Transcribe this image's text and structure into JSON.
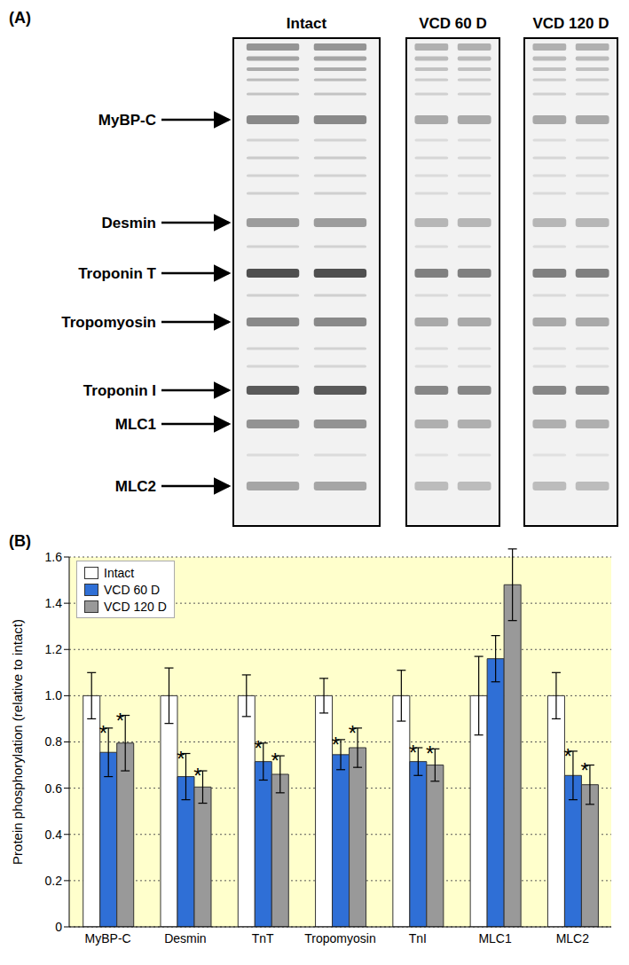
{
  "gel": {
    "label": "(A)",
    "lanes": [
      "Intact",
      "VCD 60 D",
      "VCD 120 D"
    ],
    "bands": [
      "MyBP-C",
      "Desmin",
      "Troponin T",
      "Tropomyosin",
      "Troponin I",
      "MLC1",
      "MLC2"
    ]
  },
  "chart_data": {
    "type": "bar",
    "title": "(B)",
    "y_label": "Protein phosphorylation (relative to intact)",
    "categories": [
      "MyBP-C",
      "Desmin",
      "TnT",
      "Tropomyosin",
      "TnI",
      "MLC1",
      "MLC2"
    ],
    "series": [
      {
        "name": "Intact",
        "color": "#ffffff",
        "values": [
          1.0,
          1.0,
          1.0,
          1.0,
          1.0,
          1.0,
          1.0
        ],
        "errors": [
          0.1,
          0.12,
          0.09,
          0.075,
          0.11,
          0.17,
          0.1
        ],
        "significance": [
          null,
          null,
          null,
          null,
          null,
          null,
          null
        ]
      },
      {
        "name": "VCD 60 D",
        "color": "#2f6fd6",
        "values": [
          0.755,
          0.65,
          0.715,
          0.745,
          0.715,
          1.16,
          0.655
        ],
        "errors": [
          0.105,
          0.1,
          0.08,
          0.065,
          0.06,
          0.1,
          0.105
        ],
        "significance": [
          "*",
          "*",
          "*",
          "*",
          "*",
          null,
          "*"
        ]
      },
      {
        "name": "VCD 120 D",
        "color": "#999999",
        "values": [
          0.795,
          0.605,
          0.66,
          0.775,
          0.7,
          1.48,
          0.615
        ],
        "errors": [
          0.12,
          0.07,
          0.08,
          0.085,
          0.07,
          0.155,
          0.085
        ],
        "significance": [
          "*",
          "*",
          "*",
          "*",
          "*",
          null,
          "*"
        ]
      }
    ],
    "ylim": [
      0,
      1.6
    ],
    "yticks": [
      0,
      0.2,
      0.4,
      0.6,
      0.8,
      {
        "value": 1,
        "label": "1.0"
      },
      1.2,
      1.4,
      1.6
    ],
    "grid": true,
    "legend": "top-left"
  }
}
